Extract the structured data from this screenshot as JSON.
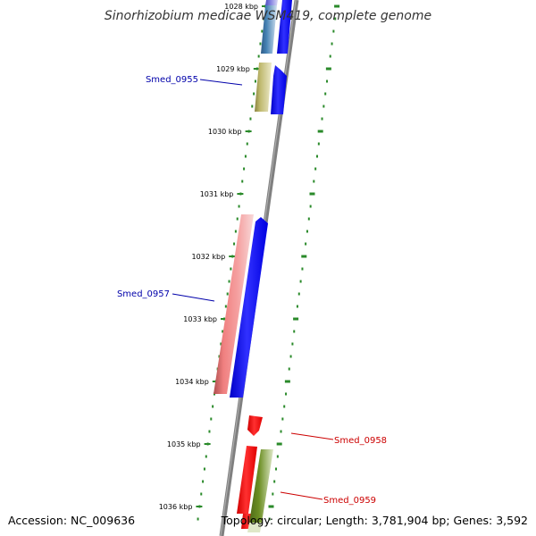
{
  "header": {
    "title": "Sinorhizobium medicae WSM419, complete genome"
  },
  "footer": {
    "accession": "Accession: NC_009636",
    "topology": "Topology: circular; Length: 3,781,904 bp; Genes: 3,592"
  },
  "map": {
    "unit": "kbp",
    "visible_range_kbp": [
      1028,
      1036
    ],
    "ticks": [
      {
        "kbp": 1028,
        "label": "1028 kbp"
      },
      {
        "kbp": 1029,
        "label": "1029 kbp"
      },
      {
        "kbp": 1030,
        "label": "1030 kbp"
      },
      {
        "kbp": 1031,
        "label": "1031 kbp"
      },
      {
        "kbp": 1032,
        "label": "1032 kbp"
      },
      {
        "kbp": 1033,
        "label": "1033 kbp"
      },
      {
        "kbp": 1034,
        "label": "1034 kbp"
      },
      {
        "kbp": 1035,
        "label": "1035 kbp"
      },
      {
        "kbp": 1036,
        "label": "1036 kbp"
      }
    ],
    "labels": [
      {
        "text": "Smed_0955",
        "color": "#0000aa"
      },
      {
        "text": "Smed_0957",
        "color": "#0000aa"
      },
      {
        "text": "Smed_0958",
        "color": "#cc0000"
      },
      {
        "text": "Smed_0959",
        "color": "#cc0000"
      }
    ],
    "colors": {
      "backbone": "#808080",
      "tick": "#2a8a2a",
      "forward_gene": "#0000ff",
      "reverse_gene": "#ff0000",
      "pink_band": "#f08080",
      "olive_band": "#6b8e23",
      "khaki_band": "#bdb76b",
      "steel_band": "#4682b4"
    }
  }
}
